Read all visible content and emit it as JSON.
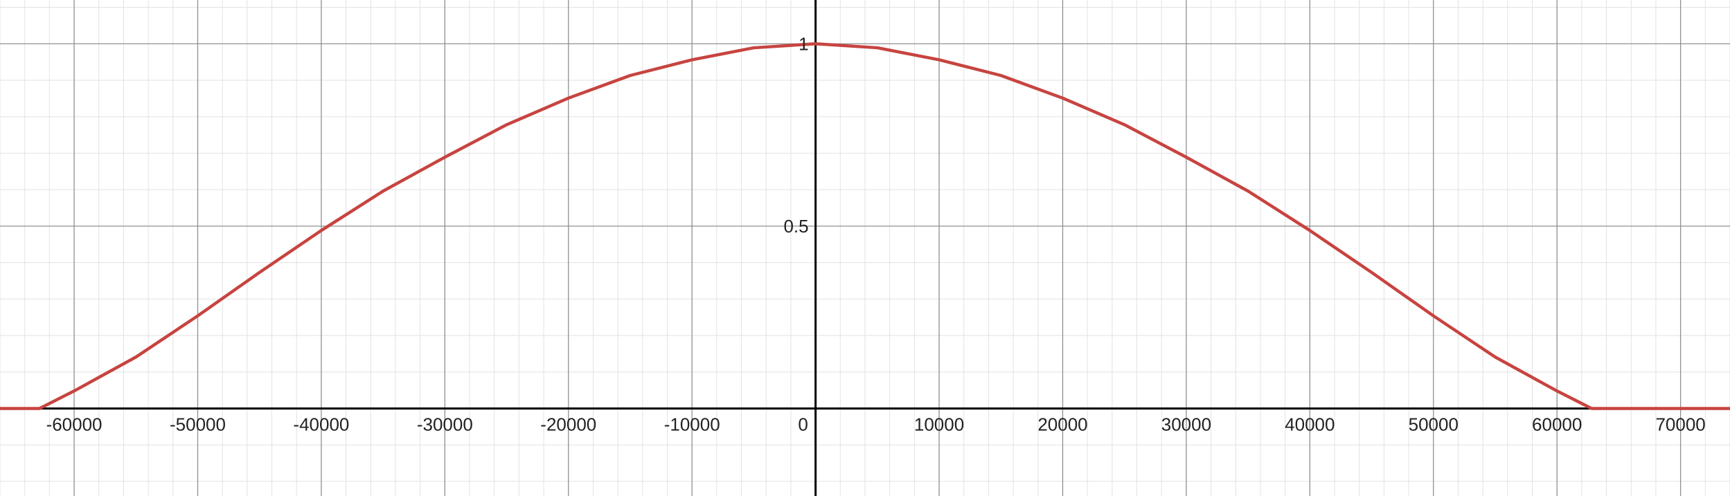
{
  "chart_data": {
    "type": "line",
    "xlim": [
      -66000,
      74000
    ],
    "ylim": [
      -0.24,
      1.12
    ],
    "x_major_step": 10000,
    "x_minor_step": 2000,
    "y_major_step": 0.5,
    "y_minor_step": 0.1,
    "x_tick_labels": [
      {
        "value": -60000,
        "label": "-60000"
      },
      {
        "value": -50000,
        "label": "-50000"
      },
      {
        "value": -40000,
        "label": "-40000"
      },
      {
        "value": -30000,
        "label": "-30000"
      },
      {
        "value": -20000,
        "label": "-20000"
      },
      {
        "value": -10000,
        "label": "-10000"
      },
      {
        "value": 0,
        "label": "0"
      },
      {
        "value": 10000,
        "label": "10000"
      },
      {
        "value": 20000,
        "label": "20000"
      },
      {
        "value": 30000,
        "label": "30000"
      },
      {
        "value": 40000,
        "label": "40000"
      },
      {
        "value": 50000,
        "label": "50000"
      },
      {
        "value": 60000,
        "label": "60000"
      },
      {
        "value": 70000,
        "label": "70000"
      }
    ],
    "y_tick_labels": [
      {
        "value": 0.5,
        "label": "0.5"
      },
      {
        "value": 1,
        "label": "1"
      }
    ],
    "grid": true,
    "series": [
      {
        "color": "#c74440",
        "x": [
          -66000,
          -62800,
          -60000,
          -55000,
          -50000,
          -45000,
          -40000,
          -35000,
          -30000,
          -25000,
          -20000,
          -15000,
          -10000,
          -5000,
          0,
          5000,
          10000,
          15000,
          20000,
          25000,
          30000,
          35000,
          40000,
          45000,
          50000,
          55000,
          60000,
          62800,
          66000,
          74000
        ],
        "y": [
          0,
          0,
          0.048,
          0.141,
          0.254,
          0.373,
          0.488,
          0.596,
          0.689,
          0.778,
          0.851,
          0.913,
          0.956,
          0.989,
          1.0,
          0.989,
          0.956,
          0.913,
          0.851,
          0.778,
          0.689,
          0.596,
          0.488,
          0.373,
          0.254,
          0.141,
          0.048,
          0,
          0,
          0
        ]
      }
    ]
  }
}
